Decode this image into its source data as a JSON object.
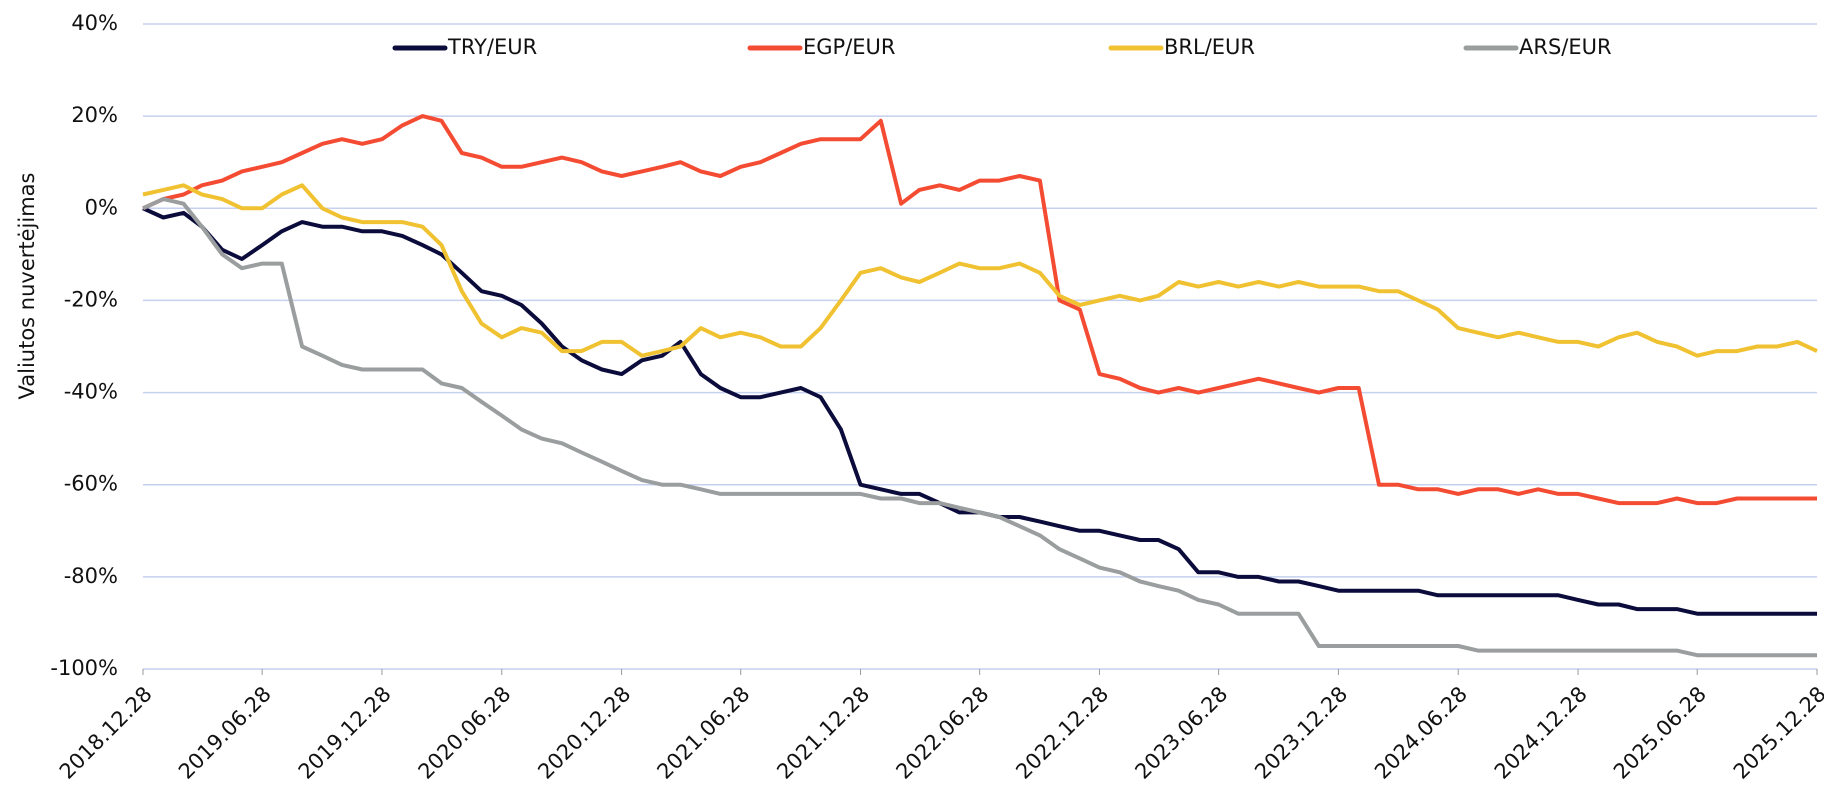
{
  "chart_data": {
    "type": "line",
    "y_label": "Valiutos nuvertėjimas",
    "legend": "top",
    "grid": true,
    "x": [
      "2018.12.28",
      "2019.01.28",
      "2019.02.28",
      "2019.03.28",
      "2019.04.28",
      "2019.05.28",
      "2019.06.28",
      "2019.07.28",
      "2019.08.28",
      "2019.09.28",
      "2019.10.28",
      "2019.11.28",
      "2019.12.28",
      "2020.01.28",
      "2020.02.28",
      "2020.03.28",
      "2020.04.28",
      "2020.05.28",
      "2020.06.28",
      "2020.07.28",
      "2020.08.28",
      "2020.09.28",
      "2020.10.28",
      "2020.11.28",
      "2020.12.28",
      "2021.01.28",
      "2021.02.28",
      "2021.03.28",
      "2021.04.28",
      "2021.05.28",
      "2021.06.28",
      "2021.07.28",
      "2021.08.28",
      "2021.09.28",
      "2021.10.28",
      "2021.11.28",
      "2021.12.28",
      "2022.01.28",
      "2022.02.28",
      "2022.03.28",
      "2022.04.28",
      "2022.05.28",
      "2022.06.28",
      "2022.07.28",
      "2022.08.28",
      "2022.09.28",
      "2022.10.28",
      "2022.11.28",
      "2022.12.28",
      "2023.01.28",
      "2023.02.28",
      "2023.03.28",
      "2023.04.28",
      "2023.05.28",
      "2023.06.28",
      "2023.07.28",
      "2023.08.28",
      "2023.09.28",
      "2023.10.28",
      "2023.11.28",
      "2023.12.28",
      "2024.01.28",
      "2024.02.28",
      "2024.03.28",
      "2024.04.28",
      "2024.05.28",
      "2024.06.28",
      "2024.07.28",
      "2024.08.28",
      "2024.09.28",
      "2024.10.28",
      "2024.11.28",
      "2024.12.28",
      "2025.01.28",
      "2025.02.28",
      "2025.03.28",
      "2025.04.28",
      "2025.05.28",
      "2025.06.28",
      "2025.07.28",
      "2025.08.28",
      "2025.09.28",
      "2025.10.28",
      "2025.11.28",
      "2025.12.28"
    ],
    "xlim": [
      "2018.12.28",
      "2025.12.28"
    ],
    "xticks": [
      "2018.12.28",
      "2019.06.28",
      "2019.12.28",
      "2020.06.28",
      "2020.12.28",
      "2021.06.28",
      "2021.12.28",
      "2022.06.28",
      "2022.12.28",
      "2023.06.28",
      "2023.12.28",
      "2024.06.28",
      "2024.12.28",
      "2025.06.28",
      "2025.12.28"
    ],
    "ylim": [
      -100,
      40
    ],
    "yticks": [
      {
        "value": 40,
        "label": "40%"
      },
      {
        "value": 20,
        "label": "20%"
      },
      {
        "value": 0,
        "label": "0%"
      },
      {
        "value": -20,
        "label": "-20%"
      },
      {
        "value": -40,
        "label": "-40%"
      },
      {
        "value": -60,
        "label": "-60%"
      },
      {
        "value": -80,
        "label": "-80%"
      },
      {
        "value": -100,
        "label": "-100%"
      }
    ],
    "series": [
      {
        "name": "TRY/EUR",
        "color": "#0c0c3c",
        "values": [
          0,
          -2,
          -1,
          -4,
          -9,
          -11,
          -8,
          -5,
          -3,
          -4,
          -4,
          -5,
          -5,
          -6,
          -8,
          -10,
          -14,
          -18,
          -19,
          -21,
          -25,
          -30,
          -33,
          -35,
          -36,
          -33,
          -32,
          -29,
          -36,
          -39,
          -41,
          -41,
          -40,
          -39,
          -41,
          -48,
          -60,
          -61,
          -62,
          -62,
          -64,
          -66,
          -66,
          -67,
          -67,
          -68,
          -69,
          -70,
          -70,
          -71,
          -72,
          -72,
          -74,
          -79,
          -79,
          -80,
          -80,
          -81,
          -81,
          -82,
          -83,
          -83,
          -83,
          -83,
          -83,
          -84,
          -84,
          -84,
          -84,
          -84,
          -84,
          -84,
          -85,
          -86,
          -86,
          -87,
          -87,
          -87,
          -88,
          -88,
          -88,
          -88,
          -88,
          -88,
          -88
        ]
      },
      {
        "name": "EGP/EUR",
        "color": "#f44b33",
        "values": [
          0,
          2,
          3,
          5,
          6,
          8,
          9,
          10,
          12,
          14,
          15,
          14,
          15,
          18,
          20,
          19,
          12,
          11,
          9,
          9,
          10,
          11,
          10,
          8,
          7,
          8,
          9,
          10,
          8,
          7,
          9,
          10,
          12,
          14,
          15,
          15,
          15,
          19,
          1,
          4,
          5,
          4,
          6,
          6,
          7,
          6,
          -20,
          -22,
          -36,
          -37,
          -39,
          -40,
          -39,
          -40,
          -39,
          -38,
          -37,
          -38,
          -39,
          -40,
          -39,
          -39,
          -60,
          -60,
          -61,
          -61,
          -62,
          -61,
          -61,
          -62,
          -61,
          -62,
          -62,
          -63,
          -64,
          -64,
          -64,
          -63,
          -64,
          -64,
          -63,
          -63,
          -63,
          -63,
          -63
        ]
      },
      {
        "name": "BRL/EUR",
        "color": "#f0c232",
        "values": [
          3,
          4,
          5,
          3,
          2,
          0,
          0,
          3,
          5,
          0,
          -2,
          -3,
          -3,
          -3,
          -4,
          -8,
          -18,
          -25,
          -28,
          -26,
          -27,
          -31,
          -31,
          -29,
          -29,
          -32,
          -31,
          -30,
          -26,
          -28,
          -27,
          -28,
          -30,
          -30,
          -26,
          -20,
          -14,
          -13,
          -15,
          -16,
          -14,
          -12,
          -13,
          -13,
          -12,
          -14,
          -19,
          -21,
          -20,
          -19,
          -20,
          -19,
          -16,
          -17,
          -16,
          -17,
          -16,
          -17,
          -16,
          -17,
          -17,
          -17,
          -18,
          -18,
          -20,
          -22,
          -26,
          -27,
          -28,
          -27,
          -28,
          -29,
          -29,
          -30,
          -28,
          -27,
          -29,
          -30,
          -32,
          -31,
          -31,
          -30,
          -30,
          -29,
          -31
        ]
      },
      {
        "name": "ARS/EUR",
        "color": "#9a9e9e",
        "values": [
          0,
          2,
          1,
          -4,
          -10,
          -13,
          -12,
          -12,
          -30,
          -32,
          -34,
          -35,
          -35,
          -35,
          -35,
          -38,
          -39,
          -42,
          -45,
          -48,
          -50,
          -51,
          -53,
          -55,
          -57,
          -59,
          -60,
          -60,
          -61,
          -62,
          -62,
          -62,
          -62,
          -62,
          -62,
          -62,
          -62,
          -63,
          -63,
          -64,
          -64,
          -65,
          -66,
          -67,
          -69,
          -71,
          -74,
          -76,
          -78,
          -79,
          -81,
          -82,
          -83,
          -85,
          -86,
          -88,
          -88,
          -88,
          -88,
          -95,
          -95,
          -95,
          -95,
          -95,
          -95,
          -95,
          -95,
          -96,
          -96,
          -96,
          -96,
          -96,
          -96,
          -96,
          -96,
          -96,
          -96,
          -96,
          -97,
          -97,
          -97,
          -97,
          -97,
          -97,
          -97
        ]
      }
    ]
  }
}
